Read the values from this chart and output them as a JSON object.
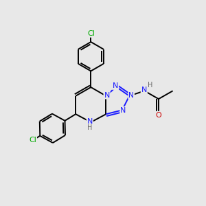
{
  "bg_color": "#e8e8e8",
  "bond_color": "#000000",
  "N_color": "#1a1aff",
  "O_color": "#cc0000",
  "Cl_color": "#00aa00",
  "H_color": "#666666",
  "bond_lw": 1.4,
  "font_size": 8.0,
  "xlim": [
    0,
    10
  ],
  "ylim": [
    0,
    10
  ]
}
